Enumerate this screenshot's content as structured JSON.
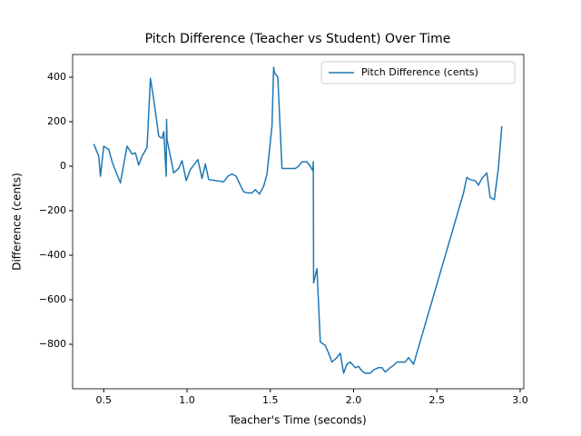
{
  "chart_data": {
    "type": "line",
    "title": "Pitch Difference (Teacher vs Student) Over Time",
    "x_label": "Teacher's Time (seconds)",
    "y_label": "Difference (cents)",
    "x": [
      0.44,
      0.47,
      0.48,
      0.5,
      0.53,
      0.55,
      0.57,
      0.6,
      0.62,
      0.64,
      0.67,
      0.69,
      0.71,
      0.73,
      0.76,
      0.78,
      0.8,
      0.83,
      0.85,
      0.86,
      0.875,
      0.877,
      0.88,
      0.92,
      0.95,
      0.97,
      0.995,
      1.02,
      1.04,
      1.065,
      1.09,
      1.11,
      1.13,
      1.22,
      1.245,
      1.27,
      1.295,
      1.32,
      1.34,
      1.365,
      1.39,
      1.41,
      1.435,
      1.46,
      1.48,
      1.51,
      1.52,
      1.525,
      1.535,
      1.545,
      1.57,
      1.65,
      1.67,
      1.69,
      1.72,
      1.74,
      1.755,
      1.758,
      1.76,
      1.78,
      1.8,
      1.83,
      1.85,
      1.87,
      1.9,
      1.92,
      1.94,
      1.96,
      1.98,
      2.01,
      2.03,
      2.05,
      2.07,
      2.1,
      2.12,
      2.15,
      2.17,
      2.19,
      2.22,
      2.24,
      2.26,
      2.31,
      2.33,
      2.36,
      2.66,
      2.68,
      2.7,
      2.73,
      2.75,
      2.77,
      2.8,
      2.82,
      2.845,
      2.87,
      2.89
    ],
    "series": [
      {
        "name": "Pitch Difference (cents)",
        "color": "#1f77b4",
        "values": [
          100,
          45,
          -45,
          90,
          75,
          20,
          -20,
          -75,
          10,
          90,
          55,
          60,
          5,
          45,
          85,
          395,
          300,
          135,
          125,
          155,
          -45,
          210,
          120,
          -30,
          -10,
          25,
          -65,
          -15,
          5,
          30,
          -55,
          10,
          -60,
          -70,
          -45,
          -35,
          -45,
          -85,
          -115,
          -120,
          -120,
          -105,
          -125,
          -90,
          -35,
          180,
          445,
          420,
          410,
          400,
          -10,
          -10,
          0,
          20,
          20,
          0,
          -20,
          20,
          -525,
          -460,
          -790,
          -805,
          -840,
          -880,
          -860,
          -840,
          -930,
          -890,
          -880,
          -905,
          -900,
          -920,
          -930,
          -930,
          -915,
          -905,
          -905,
          -925,
          -905,
          -895,
          -880,
          -880,
          -860,
          -890,
          -120,
          -50,
          -60,
          -65,
          -85,
          -55,
          -30,
          -140,
          -150,
          -5,
          180
        ]
      }
    ],
    "xlim": [
      0.313,
      3.022
    ],
    "ylim": [
      -1000,
      502
    ],
    "xticks": [
      0.5,
      {
        "value": 1.0,
        "label": "1.0"
      },
      1.5,
      {
        "value": 2.0,
        "label": "2.0"
      },
      2.5,
      {
        "value": 3.0,
        "label": "3.0"
      }
    ],
    "yticks": [
      {
        "value": -800,
        "label": "−800"
      },
      {
        "value": -600,
        "label": "−600"
      },
      {
        "value": -400,
        "label": "−400"
      },
      {
        "value": -200,
        "label": "−200"
      },
      0,
      200,
      400
    ],
    "legend": "upper right",
    "grid": false
  }
}
